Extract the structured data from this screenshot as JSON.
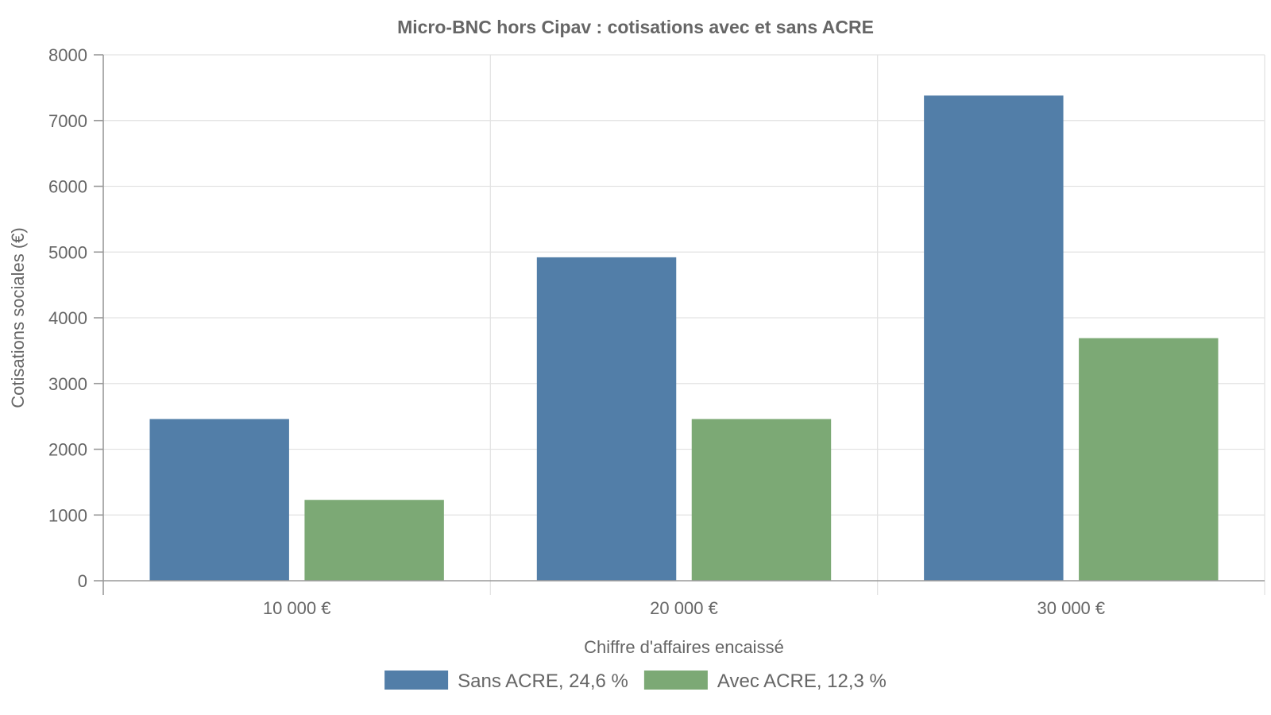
{
  "chart_data": {
    "type": "bar",
    "title": "Micro-BNC hors Cipav : cotisations avec et sans ACRE",
    "xlabel": "Chiffre d'affaires encaissé",
    "ylabel": "Cotisations sociales (€)",
    "categories": [
      "10 000 €",
      "20 000 €",
      "30 000 €"
    ],
    "series": [
      {
        "name": "Sans ACRE, 24,6 %",
        "color": "#527ea8",
        "values": [
          2460,
          4920,
          7380
        ]
      },
      {
        "name": "Avec ACRE, 12,3 %",
        "color": "#7ca975",
        "values": [
          1230,
          2460,
          3690
        ]
      }
    ],
    "ylim": [
      0,
      8000
    ],
    "yticks": [
      0,
      1000,
      2000,
      3000,
      4000,
      5000,
      6000,
      7000,
      8000
    ],
    "grid": true,
    "legend_position": "bottom-center"
  }
}
